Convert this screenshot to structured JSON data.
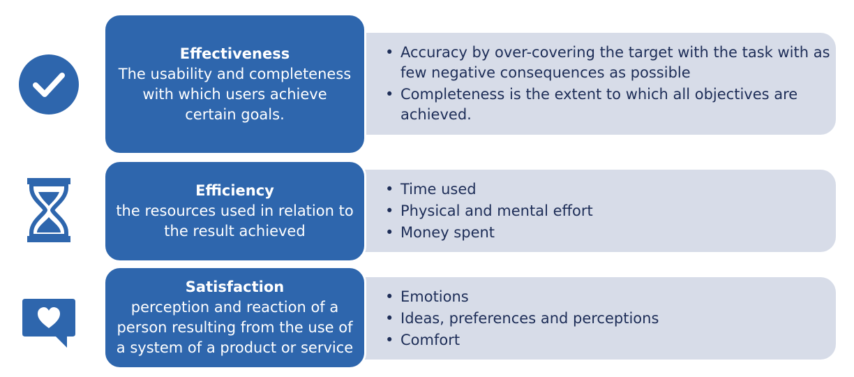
{
  "colors": {
    "primary_blue": "#2e66ad",
    "light_panel": "#d7dce8",
    "text_dark": "#1d2d57"
  },
  "rows": [
    {
      "icon": "checkmark-circle-icon",
      "title": "Effectiveness",
      "description": "The usability and completeness with which users achieve certain goals.",
      "bullets": [
        "Accuracy by over-covering the target with the task with as few negative consequences as possible",
        "Completeness is the extent to which all objectives are achieved."
      ]
    },
    {
      "icon": "hourglass-icon",
      "title": "Efficiency",
      "description": "the resources used in relation to the result achieved",
      "bullets": [
        "Time used",
        "Physical and mental effort",
        "Money spent"
      ]
    },
    {
      "icon": "heart-speech-bubble-icon",
      "title": "Satisfaction",
      "description": "perception and reaction of a person resulting from the use of a system of a product or service",
      "bullets": [
        "Emotions",
        "Ideas, preferences and perceptions",
        "Comfort"
      ]
    }
  ]
}
